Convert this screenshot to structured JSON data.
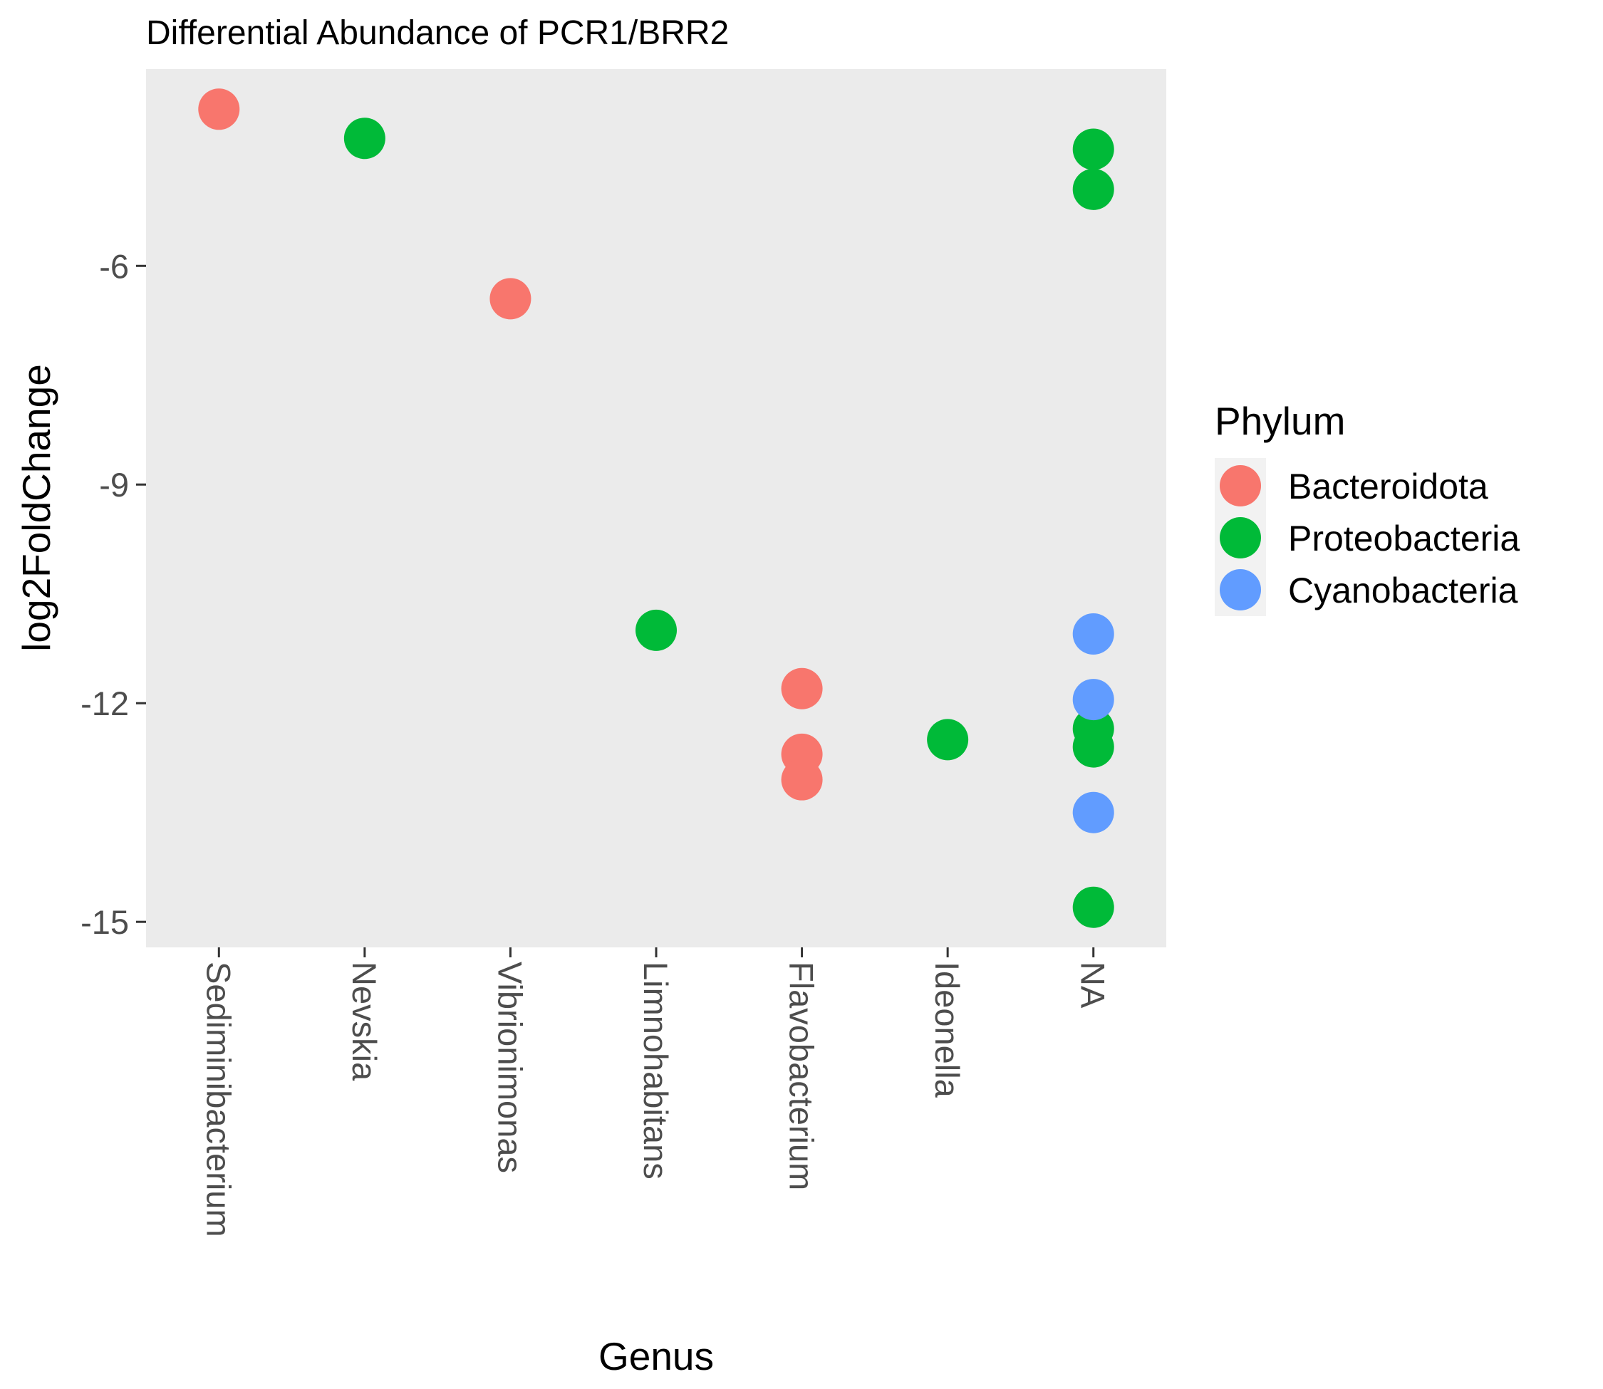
{
  "chart_data": {
    "type": "scatter",
    "title": "Differential Abundance of PCR1/BRR2",
    "xlabel": "Genus",
    "ylabel": "log2FoldChange",
    "categories": [
      "Sediminibacterium",
      "Nevskia",
      "Vibrionimonas",
      "Limnohabitans",
      "Flavobacterium",
      "Ideonella",
      "NA"
    ],
    "ylim": [
      -15.35,
      -3.3
    ],
    "yticks": [
      -6,
      -9,
      -12,
      -15
    ],
    "grid": false,
    "legend": {
      "title": "Phylum",
      "placement": "right",
      "entries": [
        "Bacteroidota",
        "Proteobacteria",
        "Cyanobacteria"
      ]
    },
    "series": [
      {
        "name": "Bacteroidota",
        "color": "#F8766D",
        "points": [
          {
            "x": "Sediminibacterium",
            "y": -3.85
          },
          {
            "x": "Vibrionimonas",
            "y": -6.45
          },
          {
            "x": "Flavobacterium",
            "y": -11.8
          },
          {
            "x": "Flavobacterium",
            "y": -12.7
          },
          {
            "x": "Flavobacterium",
            "y": -13.05
          }
        ]
      },
      {
        "name": "Proteobacteria",
        "color": "#00BA38",
        "points": [
          {
            "x": "Nevskia",
            "y": -4.25
          },
          {
            "x": "NA",
            "y": -4.4
          },
          {
            "x": "NA",
            "y": -4.95
          },
          {
            "x": "Limnohabitans",
            "y": -11.0
          },
          {
            "x": "Ideonella",
            "y": -12.5
          },
          {
            "x": "NA",
            "y": -12.35
          },
          {
            "x": "NA",
            "y": -12.6
          },
          {
            "x": "NA",
            "y": -14.8
          }
        ]
      },
      {
        "name": "Cyanobacteria",
        "color": "#619CFF",
        "points": [
          {
            "x": "NA",
            "y": -11.05
          },
          {
            "x": "NA",
            "y": -11.95
          },
          {
            "x": "NA",
            "y": -13.5
          }
        ]
      }
    ]
  }
}
